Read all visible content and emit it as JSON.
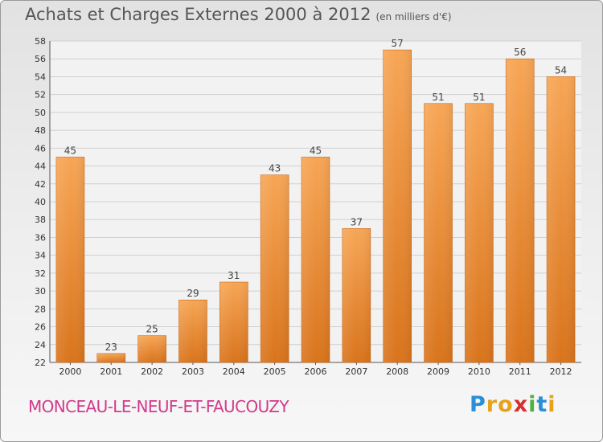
{
  "title": "Achats et Charges Externes 2000 à 2012",
  "subtitle": "(en milliers d'€)",
  "location": "MONCEAU-LE-NEUF-ET-FAUCOUZY",
  "logo_parts": [
    "P",
    "r",
    "o",
    "x",
    "i",
    "t",
    "i"
  ],
  "colors": {
    "bar": "#f0952e",
    "bar_light": "#f7a95a",
    "bar_dark": "#d9731d",
    "location_text": "#d23a8c"
  },
  "chart_data": {
    "type": "bar",
    "categories": [
      "2000",
      "2001",
      "2002",
      "2003",
      "2004",
      "2005",
      "2006",
      "2007",
      "2008",
      "2009",
      "2010",
      "2011",
      "2012"
    ],
    "values": [
      45,
      23,
      25,
      29,
      31,
      43,
      45,
      37,
      57,
      51,
      51,
      56,
      54
    ],
    "title": "Achats et Charges Externes 2000 à 2012",
    "ylim": [
      22,
      58
    ],
    "yticks": [
      22,
      24,
      26,
      28,
      30,
      32,
      34,
      36,
      38,
      40,
      42,
      44,
      46,
      48,
      50,
      52,
      54,
      56,
      58
    ],
    "grid": true
  }
}
